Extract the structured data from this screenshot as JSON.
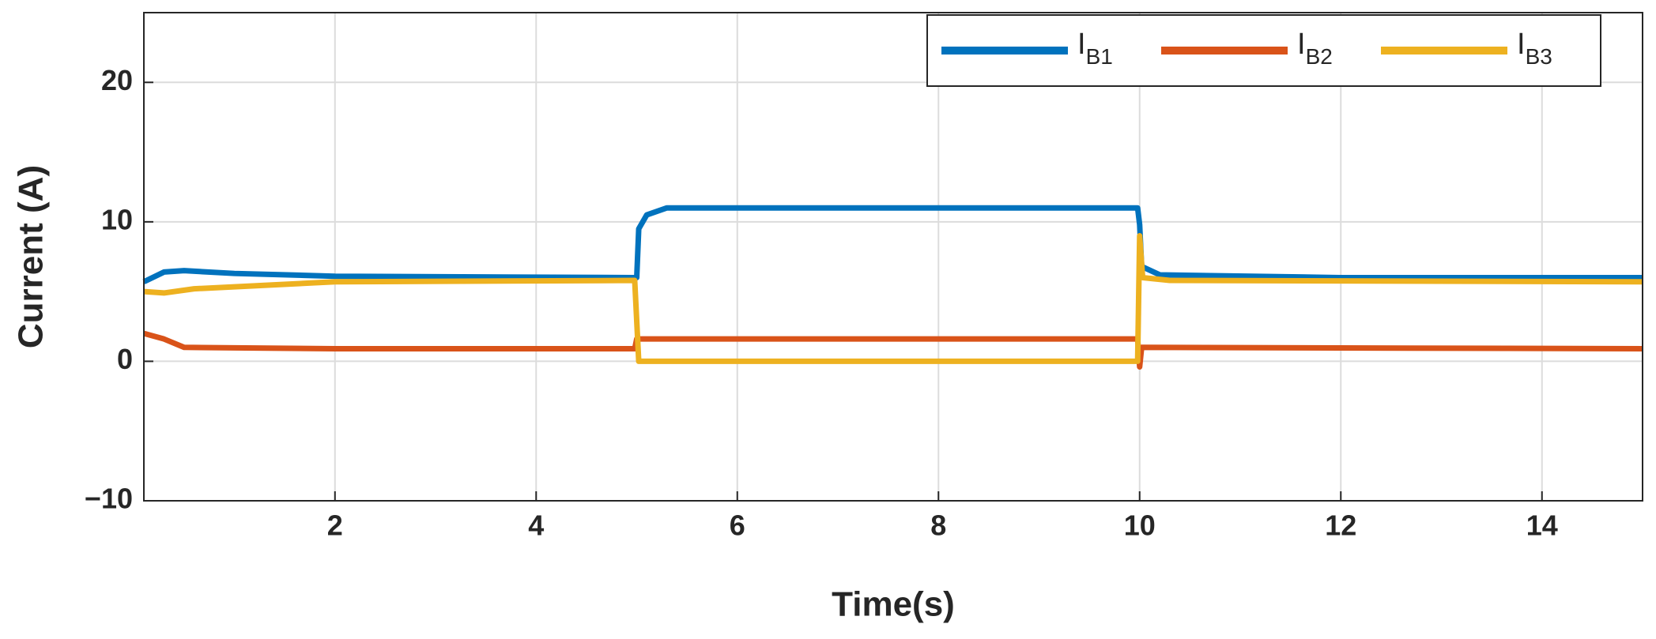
{
  "chart_data": {
    "type": "line",
    "x_label": "Time(s)",
    "y_label": "Current (A)",
    "xlim": [
      0.1,
      15
    ],
    "ylim": [
      -10,
      25
    ],
    "xticks": [
      2,
      4,
      6,
      8,
      10,
      12,
      14
    ],
    "yticks": [
      {
        "value": -10,
        "label": "−10"
      },
      0,
      10,
      20
    ],
    "grid": true,
    "legend": "upper right",
    "series": [
      {
        "name": "IB1",
        "color": "#0072bd",
        "x": [
          0.1,
          0.3,
          0.5,
          1,
          2,
          4.98,
          5.0,
          5.02,
          5.1,
          5.3,
          9.98,
          10.0,
          10.02,
          10.2,
          12,
          15
        ],
        "values": [
          5.7,
          6.4,
          6.5,
          6.3,
          6.1,
          6.0,
          6.0,
          9.5,
          10.5,
          11.0,
          11.0,
          9.8,
          6.8,
          6.2,
          6.0,
          6.0
        ]
      },
      {
        "name": "IB2",
        "color": "#d95319",
        "x": [
          0.1,
          0.3,
          0.5,
          2,
          4.98,
          5.0,
          9.98,
          10.0,
          10.02,
          15
        ],
        "values": [
          2.0,
          1.6,
          1.0,
          0.9,
          0.9,
          1.6,
          1.6,
          -0.4,
          1.0,
          0.9
        ]
      },
      {
        "name": "IB3",
        "color": "#edb120",
        "x": [
          0.1,
          0.3,
          0.6,
          2,
          4.98,
          5.02,
          9.98,
          10.0,
          10.03,
          10.3,
          15
        ],
        "values": [
          5.0,
          4.9,
          5.2,
          5.7,
          5.8,
          0.0,
          0.0,
          9.0,
          6.0,
          5.8,
          5.7
        ]
      }
    ]
  }
}
